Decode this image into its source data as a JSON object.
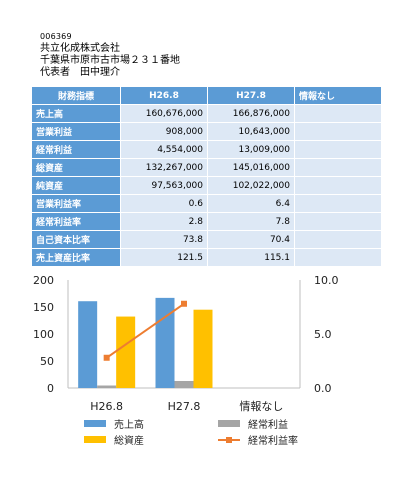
{
  "company": {
    "code": "006369",
    "name": "共立化成株式会社",
    "address": "千葉県市原市古市場２３１番地",
    "representative": "代表者　田中理介"
  },
  "table": {
    "headers": [
      "財務指標",
      "H26.8",
      "H27.8",
      "情報なし"
    ],
    "rows": [
      {
        "label": "売上高",
        "v1": "160,676,000",
        "v2": "166,876,000",
        "v3": ""
      },
      {
        "label": "営業利益",
        "v1": "908,000",
        "v2": "10,643,000",
        "v3": ""
      },
      {
        "label": "経常利益",
        "v1": "4,554,000",
        "v2": "13,009,000",
        "v3": ""
      },
      {
        "label": "総資産",
        "v1": "132,267,000",
        "v2": "145,016,000",
        "v3": ""
      },
      {
        "label": "純資産",
        "v1": "97,563,000",
        "v2": "102,022,000",
        "v3": ""
      },
      {
        "label": "営業利益率",
        "v1": "0.6",
        "v2": "6.4",
        "v3": ""
      },
      {
        "label": "経常利益率",
        "v1": "2.8",
        "v2": "7.8",
        "v3": ""
      },
      {
        "label": "自己資本比率",
        "v1": "73.8",
        "v2": "70.4",
        "v3": ""
      },
      {
        "label": "売上資産比率",
        "v1": "121.5",
        "v2": "115.1",
        "v3": ""
      }
    ]
  },
  "chart_data": {
    "type": "bar",
    "categories": [
      "H26.8",
      "H27.8",
      "情報なし"
    ],
    "y_left": {
      "min": 0,
      "max": 200,
      "ticks": [
        "0",
        "50",
        "100",
        "150",
        "200"
      ]
    },
    "y_right": {
      "min": 0,
      "max": 10,
      "ticks": [
        "0.0",
        "5.0",
        "10.0"
      ]
    },
    "series": [
      {
        "name": "売上高",
        "kind": "bar",
        "axis": "left",
        "color": "#5b9bd5",
        "values": [
          160.7,
          166.9,
          null
        ]
      },
      {
        "name": "経常利益",
        "kind": "bar",
        "axis": "left",
        "color": "#a5a5a5",
        "values": [
          4.6,
          13.0,
          null
        ]
      },
      {
        "name": "総資産",
        "kind": "bar",
        "axis": "left",
        "color": "#ffc000",
        "values": [
          132.3,
          145.0,
          null
        ]
      },
      {
        "name": "経常利益率",
        "kind": "line",
        "axis": "right",
        "color": "#ed7d31",
        "values": [
          2.8,
          7.8,
          null
        ]
      }
    ],
    "legend": [
      {
        "name": "売上高",
        "symbol": "bar",
        "color": "#5b9bd5"
      },
      {
        "name": "経常利益",
        "symbol": "bar",
        "color": "#a5a5a5"
      },
      {
        "name": "総資産",
        "symbol": "bar",
        "color": "#ffc000"
      },
      {
        "name": "経常利益率",
        "symbol": "line",
        "color": "#ed7d31"
      }
    ],
    "legend_position": "bottom",
    "grid": false
  }
}
